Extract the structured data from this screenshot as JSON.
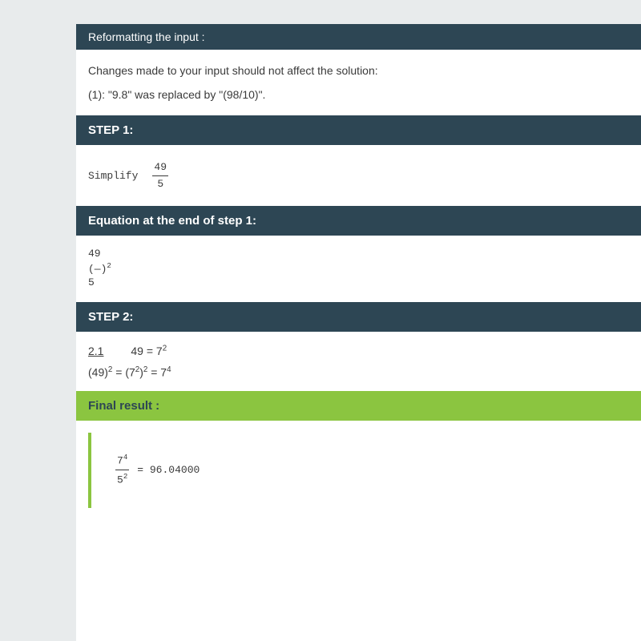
{
  "colors": {
    "header_bg": "#2d4654",
    "header_text": "#ffffff",
    "final_bg": "#8bc540",
    "final_text": "#2d4654",
    "page_bg": "#e8ebec",
    "content_bg": "#ffffff",
    "body_text": "#3a3a3a"
  },
  "typography": {
    "body_font": "Arial, sans-serif",
    "mono_font": "Courier New, monospace",
    "header_fontsize": 14,
    "step_fontsize": 15,
    "body_fontsize": 14,
    "mono_fontsize": 13
  },
  "reformat": {
    "title": "Reformatting the input :",
    "intro": "Changes made to your input should not affect the solution:",
    "change1": "(1): \"9.8\" was replaced by \"(98/10)\"."
  },
  "step1": {
    "title": "STEP 1:",
    "label": "Simplify",
    "frac_num": "49",
    "frac_den": "5"
  },
  "eq_end_step1": {
    "title": "Equation at the end of step 1:",
    "line1": "49",
    "line2": "(—)",
    "line2_sup": "2",
    "line3": "5"
  },
  "step2": {
    "title": "STEP 2:",
    "link": "2.1",
    "expr1_left": "49 = 7",
    "expr1_sup": "2",
    "expr2_a": "(49)",
    "expr2_a_sup": "2",
    "expr2_eq1": " = (7",
    "expr2_b_sup": "2",
    "expr2_b": ")",
    "expr2_c_sup": "2",
    "expr2_eq2": " = 7",
    "expr2_d_sup": "4"
  },
  "final": {
    "title": "Final result :",
    "num_base": "7",
    "num_sup": "4",
    "den_base": "5",
    "den_sup": "2",
    "equals": " = 96.04000"
  }
}
